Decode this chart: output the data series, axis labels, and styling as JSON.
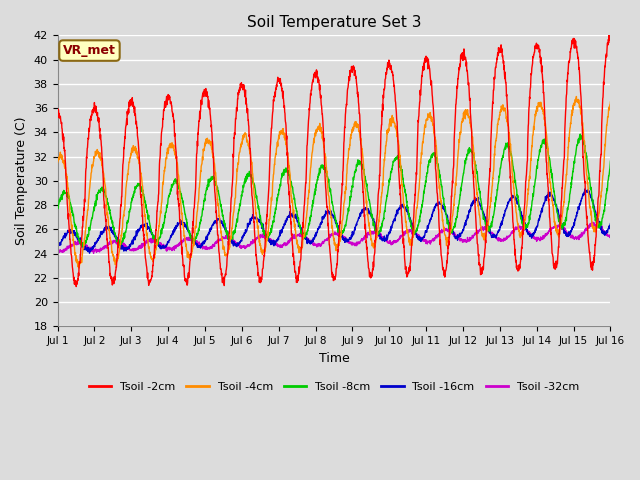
{
  "title": "Soil Temperature Set 3",
  "xlabel": "Time",
  "ylabel": "Soil Temperature (C)",
  "ylim": [
    18,
    42
  ],
  "xlim": [
    0,
    15
  ],
  "xtick_labels": [
    "Jul 1",
    "Jul 2",
    "Jul 3",
    "Jul 4",
    "Jul 5",
    "Jul 6",
    "Jul 7",
    "Jul 8",
    "Jul 9",
    "Jul 10",
    "Jul 11",
    "Jul 12",
    "Jul 13",
    "Jul 14",
    "Jul 15",
    "Jul 16"
  ],
  "ytick_values": [
    18,
    20,
    22,
    24,
    26,
    28,
    30,
    32,
    34,
    36,
    38,
    40,
    42
  ],
  "annotation_text": "VR_met",
  "annotation_color": "#8B0000",
  "annotation_bg": "#FFFFC0",
  "annotation_border": "#8B6914",
  "colors": {
    "Tsoil -2cm": "#FF0000",
    "Tsoil -4cm": "#FF8C00",
    "Tsoil -8cm": "#00CC00",
    "Tsoil -16cm": "#0000CC",
    "Tsoil -32cm": "#CC00CC"
  },
  "bg_color": "#DCDCDC",
  "grid_color": "#FFFFFF",
  "n_days": 15,
  "pts_per_day": 144
}
